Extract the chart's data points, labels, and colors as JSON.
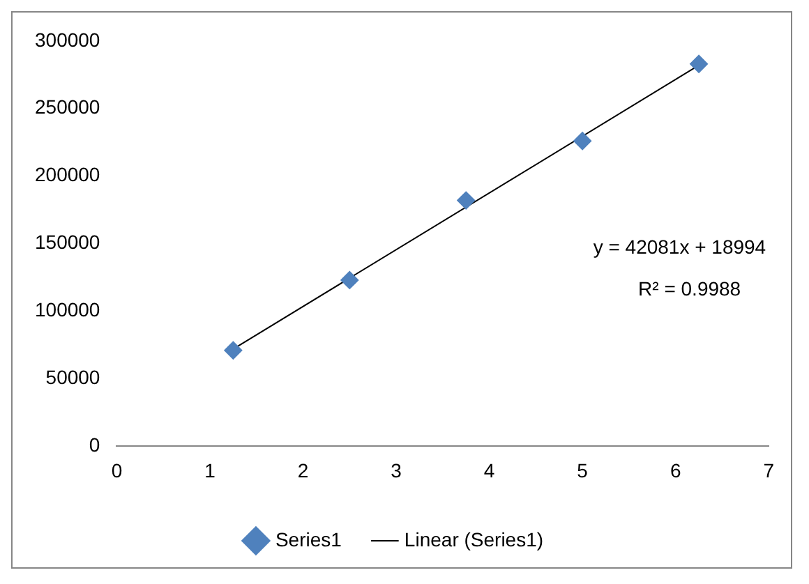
{
  "chart_data": {
    "type": "scatter",
    "xlim": [
      0,
      7
    ],
    "xticks": [
      0,
      1,
      2,
      3,
      4,
      5,
      6,
      7
    ],
    "ylim": [
      0,
      300000
    ],
    "yticks": [
      0,
      50000,
      100000,
      150000,
      200000,
      250000,
      300000
    ],
    "grid": false,
    "legend": "bottom",
    "series": [
      {
        "name": "Series1",
        "color": "#4f81bd",
        "marker": "diamond",
        "x": [
          1.25,
          2.5,
          3.75,
          5,
          6.25
        ],
        "values": [
          71000,
          123000,
          182000,
          226000,
          283000
        ]
      },
      {
        "name": "Linear (Series1)",
        "type": "line",
        "color": "#000000",
        "marker": "none",
        "x": [
          1.25,
          6.25
        ],
        "values": [
          72000,
          282000
        ]
      }
    ],
    "annotations": [
      "y = 42081x + 18994",
      "R² = 0.9988"
    ]
  }
}
